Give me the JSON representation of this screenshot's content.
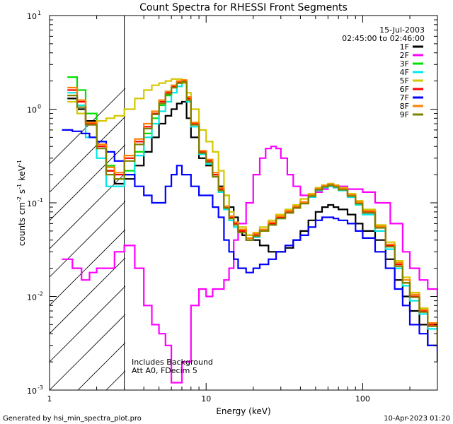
{
  "chart_data": {
    "type": "line",
    "title": "Count Spectra for RHESSI Front Segments",
    "xlabel": "Energy (keV)",
    "ylabel_main": "counts cm",
    "ylabel_exp1": "-2",
    "ylabel_s": " s",
    "ylabel_exp2": "-1",
    "ylabel_kev": " keV",
    "ylabel_exp3": "-1",
    "xscale": "log",
    "yscale": "log",
    "xlim": [
      1,
      300
    ],
    "ylim": [
      0.001,
      10
    ],
    "x_ticks": [
      {
        "value": 1,
        "label": "1"
      },
      {
        "value": 10,
        "label": "10"
      },
      {
        "value": 100,
        "label": "100"
      }
    ],
    "y_ticks": [
      {
        "value": 0.001,
        "base": "10",
        "exp": "-3"
      },
      {
        "value": 0.01,
        "base": "10",
        "exp": "-2"
      },
      {
        "value": 0.1,
        "base": "10",
        "exp": "-1"
      },
      {
        "value": 1,
        "base": "10",
        "exp": "0"
      },
      {
        "value": 10,
        "base": "10",
        "exp": "1"
      }
    ],
    "date": "15-Jul-2003",
    "time_range": "02:45:00 to 02:46:00",
    "attenuator_boundary_kev": 3,
    "notes": [
      "Includes Background",
      "Att A0, FDecim 5"
    ],
    "footer_left": "Generated by hsi_min_spectra_plot.pro",
    "footer_right": "10-Apr-2023 01:20",
    "series": [
      {
        "name": "1F",
        "color": "#000000",
        "x": [
          1.3,
          1.5,
          1.7,
          2.0,
          2.3,
          2.6,
          3.0,
          3.5,
          4.0,
          4.5,
          5.0,
          5.5,
          6.0,
          6.5,
          7.0,
          7.5,
          8.0,
          9.0,
          10,
          11,
          12,
          13,
          14,
          15,
          16,
          17,
          18,
          20,
          22,
          25,
          28,
          32,
          36,
          40,
          45,
          50,
          55,
          60,
          65,
          70,
          80,
          90,
          100,
          120,
          140,
          160,
          180,
          200,
          230,
          260,
          300
        ],
        "y": [
          1.3,
          1.0,
          0.75,
          0.4,
          0.22,
          0.16,
          0.18,
          0.25,
          0.35,
          0.5,
          0.7,
          0.85,
          1.0,
          1.15,
          1.2,
          0.8,
          0.5,
          0.3,
          0.25,
          0.2,
          0.15,
          0.12,
          0.09,
          0.07,
          0.05,
          0.045,
          0.045,
          0.04,
          0.035,
          0.03,
          0.03,
          0.033,
          0.04,
          0.05,
          0.065,
          0.08,
          0.09,
          0.095,
          0.09,
          0.085,
          0.075,
          0.06,
          0.05,
          0.04,
          0.025,
          0.015,
          0.01,
          0.007,
          0.005,
          0.003,
          0.002
        ]
      },
      {
        "name": "2F",
        "color": "#ff00ff",
        "x": [
          1.2,
          1.4,
          1.6,
          1.8,
          2.0,
          2.3,
          2.6,
          3.0,
          3.5,
          4.0,
          4.5,
          5.0,
          5.5,
          6.0,
          7.0,
          8.0,
          9.0,
          10,
          11,
          12,
          13,
          14,
          15,
          16,
          18,
          20,
          22,
          24,
          26,
          28,
          30,
          33,
          36,
          40,
          45,
          50,
          55,
          60,
          70,
          80,
          100,
          120,
          150,
          180,
          200,
          230,
          260,
          300
        ],
        "y": [
          0.025,
          0.02,
          0.015,
          0.018,
          0.02,
          0.02,
          0.03,
          0.035,
          0.02,
          0.008,
          0.005,
          0.004,
          0.003,
          0.0012,
          0.002,
          0.008,
          0.012,
          0.01,
          0.012,
          0.012,
          0.015,
          0.02,
          0.04,
          0.06,
          0.1,
          0.2,
          0.3,
          0.38,
          0.4,
          0.38,
          0.3,
          0.2,
          0.15,
          0.12,
          0.12,
          0.13,
          0.14,
          0.15,
          0.15,
          0.14,
          0.13,
          0.1,
          0.06,
          0.03,
          0.02,
          0.015,
          0.012,
          0.01
        ]
      },
      {
        "name": "3F",
        "color": "#00e000",
        "x": [
          1.3,
          1.5,
          1.7,
          2.0,
          2.3,
          2.6,
          3.0,
          3.5,
          4.0,
          4.5,
          5.0,
          5.5,
          6.0,
          6.5,
          7.0,
          7.5,
          8.0,
          9.0,
          10,
          11,
          12,
          13,
          14,
          15,
          16,
          18,
          20,
          22,
          25,
          28,
          32,
          36,
          40,
          45,
          50,
          55,
          60,
          65,
          70,
          80,
          90,
          100,
          120,
          140,
          160,
          180,
          200,
          230,
          260,
          300
        ],
        "y": [
          2.2,
          1.6,
          0.9,
          0.45,
          0.25,
          0.18,
          0.22,
          0.35,
          0.55,
          0.8,
          1.1,
          1.4,
          1.7,
          1.9,
          2.0,
          1.3,
          0.7,
          0.35,
          0.28,
          0.2,
          0.14,
          0.09,
          0.07,
          0.06,
          0.05,
          0.04,
          0.045,
          0.05,
          0.06,
          0.07,
          0.08,
          0.09,
          0.1,
          0.12,
          0.14,
          0.15,
          0.16,
          0.15,
          0.14,
          0.12,
          0.1,
          0.08,
          0.055,
          0.035,
          0.022,
          0.014,
          0.01,
          0.007,
          0.005,
          0.003
        ]
      },
      {
        "name": "4F",
        "color": "#00e8e8",
        "x": [
          1.3,
          1.5,
          1.7,
          2.0,
          2.3,
          2.6,
          3.0,
          3.5,
          4.0,
          4.5,
          5.0,
          5.5,
          6.0,
          6.5,
          7.0,
          7.5,
          8.0,
          9.0,
          10,
          11,
          12,
          13,
          14,
          15,
          16,
          18,
          20,
          22,
          25,
          28,
          32,
          36,
          40,
          45,
          50,
          55,
          60,
          65,
          70,
          80,
          90,
          100,
          120,
          140,
          160,
          180,
          200,
          230,
          260,
          300
        ],
        "y": [
          1.5,
          1.1,
          0.5,
          0.3,
          0.15,
          0.15,
          0.2,
          0.32,
          0.5,
          0.7,
          0.95,
          1.2,
          1.5,
          1.75,
          1.9,
          1.2,
          0.65,
          0.33,
          0.26,
          0.19,
          0.13,
          0.085,
          0.065,
          0.055,
          0.05,
          0.04,
          0.043,
          0.05,
          0.058,
          0.068,
          0.078,
          0.088,
          0.1,
          0.115,
          0.135,
          0.145,
          0.15,
          0.145,
          0.135,
          0.115,
          0.095,
          0.075,
          0.05,
          0.032,
          0.02,
          0.013,
          0.009,
          0.0065,
          0.0045,
          0.003
        ]
      },
      {
        "name": "5F",
        "color": "#d4c800",
        "x": [
          1.3,
          1.5,
          1.7,
          2.0,
          2.3,
          2.6,
          3.0,
          3.5,
          4.0,
          4.5,
          5.0,
          5.5,
          6.0,
          6.5,
          7.0,
          7.5,
          8.0,
          9.0,
          10,
          11,
          12,
          13,
          14,
          15,
          16,
          18,
          20,
          22,
          25,
          28,
          32,
          36,
          40,
          45,
          50,
          55,
          60,
          65,
          70,
          80,
          90,
          100,
          120,
          140,
          160,
          180,
          200,
          230,
          260,
          300
        ],
        "y": [
          1.2,
          0.9,
          0.7,
          0.75,
          0.8,
          0.85,
          1.0,
          1.3,
          1.6,
          1.8,
          1.9,
          2.0,
          2.1,
          2.1,
          1.9,
          1.5,
          1.0,
          0.6,
          0.45,
          0.35,
          0.22,
          0.12,
          0.08,
          0.06,
          0.055,
          0.045,
          0.048,
          0.055,
          0.065,
          0.075,
          0.085,
          0.095,
          0.11,
          0.125,
          0.145,
          0.155,
          0.16,
          0.155,
          0.145,
          0.125,
          0.105,
          0.085,
          0.058,
          0.038,
          0.024,
          0.016,
          0.011,
          0.0075,
          0.005,
          0.0035
        ]
      },
      {
        "name": "6F",
        "color": "#ff0000",
        "x": [
          1.3,
          1.5,
          1.7,
          2.0,
          2.3,
          2.6,
          3.0,
          3.5,
          4.0,
          4.5,
          5.0,
          5.5,
          6.0,
          6.5,
          7.0,
          7.5,
          8.0,
          9.0,
          10,
          11,
          12,
          13,
          14,
          15,
          16,
          18,
          20,
          22,
          25,
          28,
          32,
          36,
          40,
          45,
          50,
          55,
          60,
          65,
          70,
          80,
          90,
          100,
          120,
          140,
          160,
          180,
          200,
          230,
          260,
          300
        ],
        "y": [
          1.6,
          1.2,
          0.7,
          0.4,
          0.22,
          0.2,
          0.3,
          0.45,
          0.65,
          0.9,
          1.2,
          1.5,
          1.75,
          1.95,
          2.0,
          1.3,
          0.7,
          0.35,
          0.28,
          0.2,
          0.14,
          0.09,
          0.07,
          0.06,
          0.05,
          0.04,
          0.045,
          0.05,
          0.06,
          0.07,
          0.08,
          0.09,
          0.1,
          0.12,
          0.14,
          0.15,
          0.155,
          0.15,
          0.14,
          0.12,
          0.1,
          0.08,
          0.055,
          0.035,
          0.022,
          0.014,
          0.01,
          0.007,
          0.005,
          0.003
        ]
      },
      {
        "name": "7F",
        "color": "#0000ff",
        "x": [
          1.2,
          1.4,
          1.6,
          1.8,
          2.0,
          2.3,
          2.6,
          3.0,
          3.5,
          4.0,
          4.5,
          5.0,
          5.5,
          6.0,
          6.5,
          7.0,
          8.0,
          9.0,
          10,
          11,
          12,
          13,
          14,
          15,
          16,
          18,
          20,
          22,
          25,
          28,
          32,
          36,
          40,
          45,
          50,
          55,
          60,
          65,
          70,
          80,
          90,
          100,
          120,
          140,
          160,
          180,
          200,
          230,
          260,
          300
        ],
        "y": [
          0.6,
          0.58,
          0.55,
          0.5,
          0.45,
          0.35,
          0.28,
          0.2,
          0.15,
          0.12,
          0.1,
          0.1,
          0.15,
          0.2,
          0.25,
          0.2,
          0.15,
          0.12,
          0.12,
          0.09,
          0.07,
          0.04,
          0.03,
          0.025,
          0.02,
          0.018,
          0.02,
          0.022,
          0.025,
          0.03,
          0.035,
          0.04,
          0.045,
          0.055,
          0.065,
          0.07,
          0.07,
          0.068,
          0.065,
          0.06,
          0.05,
          0.042,
          0.03,
          0.02,
          0.012,
          0.008,
          0.005,
          0.004,
          0.003,
          0.0025
        ]
      },
      {
        "name": "8F",
        "color": "#ff8000",
        "x": [
          1.3,
          1.5,
          1.7,
          2.0,
          2.3,
          2.6,
          3.0,
          3.5,
          4.0,
          4.5,
          5.0,
          5.5,
          6.0,
          6.5,
          7.0,
          7.5,
          8.0,
          9.0,
          10,
          11,
          12,
          13,
          14,
          15,
          16,
          18,
          20,
          22,
          25,
          28,
          32,
          36,
          40,
          45,
          50,
          55,
          60,
          65,
          70,
          80,
          90,
          100,
          120,
          140,
          160,
          180,
          200,
          230,
          260,
          300
        ],
        "y": [
          1.7,
          1.25,
          0.72,
          0.42,
          0.24,
          0.21,
          0.32,
          0.48,
          0.7,
          0.95,
          1.25,
          1.55,
          1.8,
          2.0,
          2.05,
          1.35,
          0.72,
          0.36,
          0.29,
          0.21,
          0.145,
          0.092,
          0.072,
          0.062,
          0.052,
          0.042,
          0.047,
          0.052,
          0.062,
          0.072,
          0.082,
          0.092,
          0.102,
          0.122,
          0.142,
          0.152,
          0.158,
          0.152,
          0.142,
          0.122,
          0.102,
          0.082,
          0.056,
          0.036,
          0.023,
          0.015,
          0.0105,
          0.0072,
          0.0052,
          0.0032
        ]
      },
      {
        "name": "9F",
        "color": "#808000",
        "x": [
          1.3,
          1.5,
          1.7,
          2.0,
          2.3,
          2.6,
          3.0,
          3.5,
          4.0,
          4.5,
          5.0,
          5.5,
          6.0,
          6.5,
          7.0,
          7.5,
          8.0,
          9.0,
          10,
          11,
          12,
          13,
          14,
          15,
          16,
          18,
          20,
          22,
          25,
          28,
          32,
          36,
          40,
          45,
          50,
          55,
          60,
          65,
          70,
          80,
          90,
          100,
          120,
          140,
          160,
          180,
          200,
          230,
          260,
          300
        ],
        "y": [
          1.4,
          1.05,
          0.68,
          0.38,
          0.2,
          0.18,
          0.28,
          0.42,
          0.62,
          0.88,
          1.15,
          1.45,
          1.7,
          1.9,
          1.95,
          1.25,
          0.68,
          0.34,
          0.27,
          0.19,
          0.135,
          0.088,
          0.068,
          0.058,
          0.048,
          0.04,
          0.044,
          0.05,
          0.058,
          0.068,
          0.078,
          0.088,
          0.098,
          0.118,
          0.138,
          0.148,
          0.154,
          0.148,
          0.138,
          0.118,
          0.098,
          0.078,
          0.054,
          0.034,
          0.021,
          0.014,
          0.0098,
          0.0068,
          0.0048,
          0.003
        ]
      }
    ]
  }
}
